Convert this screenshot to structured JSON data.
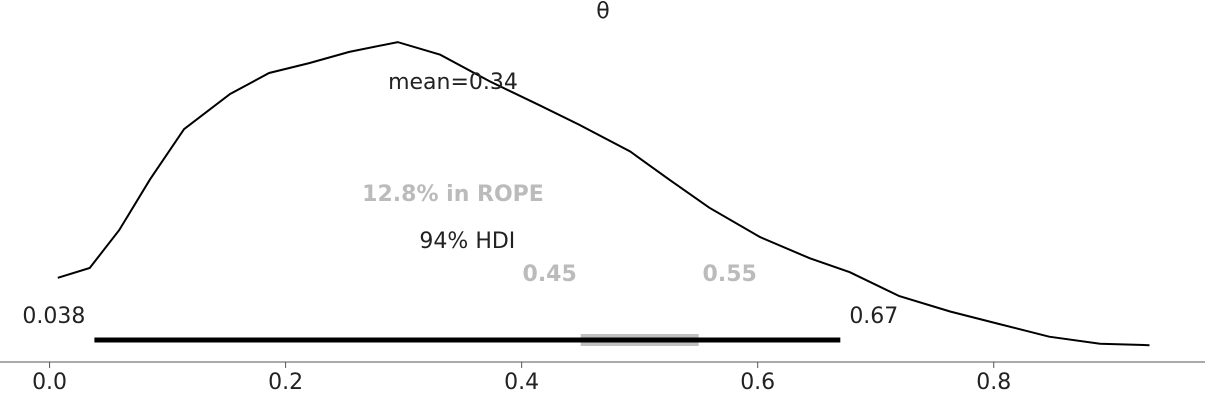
{
  "chart_data": {
    "type": "posterior",
    "title": "θ",
    "x": [
      0.007,
      0.034,
      0.059,
      0.085,
      0.114,
      0.153,
      0.186,
      0.22,
      0.254,
      0.295,
      0.331,
      0.373,
      0.415,
      0.449,
      0.492,
      0.525,
      0.559,
      0.602,
      0.644,
      0.678,
      0.72,
      0.763,
      0.805,
      0.847,
      0.89,
      0.932
    ],
    "values": [
      0.48,
      0.55,
      0.82,
      1.18,
      1.54,
      1.79,
      1.94,
      2.01,
      2.09,
      2.16,
      2.07,
      1.88,
      1.71,
      1.57,
      1.38,
      1.18,
      0.98,
      0.77,
      0.62,
      0.52,
      0.35,
      0.24,
      0.15,
      0.06,
      0.01,
      0.0
    ],
    "color": "#000000",
    "point_estimate_label": "mean=0.34",
    "hdi_label": "94% HDI",
    "hdi": [
      0.038,
      0.67
    ],
    "rope_label": "12.8% in ROPE",
    "rope": [
      0.45,
      0.55
    ],
    "rope_color": "#c0c0c0",
    "xlim": [
      -0.042,
      0.979
    ],
    "ylim": [
      -0.12,
      2.46
    ],
    "xticks": [
      {
        "value": 0,
        "label": "0.0"
      },
      0.2,
      0.4,
      0.6,
      0.8
    ]
  }
}
